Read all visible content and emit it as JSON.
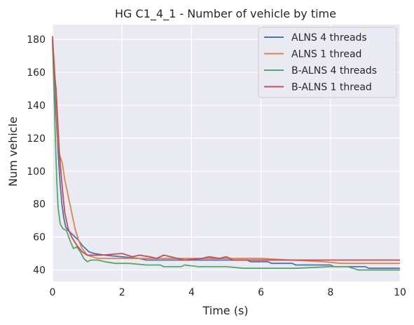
{
  "chart_data": {
    "type": "line",
    "title": "HG C1_4_1 - Number of vehicle by time",
    "xlabel": "Time (s)",
    "ylabel": "Num vehicle",
    "xlim": [
      0,
      10
    ],
    "ylim": [
      33,
      189
    ],
    "x_ticks": [
      0,
      2,
      4,
      6,
      8,
      10
    ],
    "y_ticks": [
      40,
      60,
      80,
      100,
      120,
      140,
      160,
      180
    ],
    "grid": true,
    "legend_position": "top-right",
    "colors": {
      "background": "#eaeaf2",
      "grid": "#ffffff"
    },
    "series": [
      {
        "name": "ALNS 4 threads",
        "color": "#4c72b0",
        "points": [
          [
            0,
            180
          ],
          [
            0.03,
            165
          ],
          [
            0.06,
            150
          ],
          [
            0.1,
            135
          ],
          [
            0.14,
            120
          ],
          [
            0.18,
            105
          ],
          [
            0.22,
            92
          ],
          [
            0.27,
            80
          ],
          [
            0.32,
            72
          ],
          [
            0.38,
            66
          ],
          [
            0.45,
            64
          ],
          [
            0.55,
            62
          ],
          [
            0.65,
            60
          ],
          [
            0.75,
            58
          ],
          [
            0.85,
            55
          ],
          [
            0.95,
            53
          ],
          [
            1.05,
            51
          ],
          [
            1.2,
            50
          ],
          [
            1.5,
            49
          ],
          [
            2.0,
            48
          ],
          [
            2.5,
            47
          ],
          [
            2.7,
            46
          ],
          [
            3.5,
            46
          ],
          [
            4.5,
            46
          ],
          [
            5.6,
            46
          ],
          [
            5.7,
            45
          ],
          [
            6.2,
            45
          ],
          [
            6.3,
            44
          ],
          [
            6.9,
            44
          ],
          [
            7.0,
            43
          ],
          [
            8.0,
            43
          ],
          [
            8.1,
            42
          ],
          [
            9.0,
            42
          ],
          [
            9.1,
            41
          ],
          [
            10,
            41
          ]
        ]
      },
      {
        "name": "ALNS 1 thread",
        "color": "#dd8452",
        "points": [
          [
            0,
            180
          ],
          [
            0.05,
            165
          ],
          [
            0.1,
            145
          ],
          [
            0.15,
            120
          ],
          [
            0.2,
            110
          ],
          [
            0.28,
            105
          ],
          [
            0.35,
            95
          ],
          [
            0.45,
            85
          ],
          [
            0.55,
            75
          ],
          [
            0.65,
            65
          ],
          [
            0.75,
            58
          ],
          [
            0.85,
            53
          ],
          [
            1.0,
            49
          ],
          [
            1.3,
            47
          ],
          [
            2.0,
            47
          ],
          [
            2.5,
            47
          ],
          [
            3.0,
            47
          ],
          [
            4.0,
            47
          ],
          [
            5.0,
            47
          ],
          [
            6.0,
            47
          ],
          [
            6.9,
            46
          ],
          [
            7.8,
            45
          ],
          [
            8.3,
            44
          ],
          [
            10,
            44
          ]
        ]
      },
      {
        "name": "B-ALNS 4 threads",
        "color": "#55a868",
        "points": [
          [
            0,
            178
          ],
          [
            0.04,
            150
          ],
          [
            0.08,
            120
          ],
          [
            0.12,
            95
          ],
          [
            0.16,
            78
          ],
          [
            0.22,
            68
          ],
          [
            0.3,
            65
          ],
          [
            0.4,
            64
          ],
          [
            0.5,
            58
          ],
          [
            0.6,
            53
          ],
          [
            0.7,
            54
          ],
          [
            0.8,
            51
          ],
          [
            0.9,
            47
          ],
          [
            1.0,
            45
          ],
          [
            1.1,
            46
          ],
          [
            1.3,
            46
          ],
          [
            1.5,
            45
          ],
          [
            1.8,
            44
          ],
          [
            2.2,
            44
          ],
          [
            2.7,
            43
          ],
          [
            3.1,
            43
          ],
          [
            3.2,
            42
          ],
          [
            3.7,
            42
          ],
          [
            3.8,
            43
          ],
          [
            4.2,
            42
          ],
          [
            5.0,
            42
          ],
          [
            5.5,
            41
          ],
          [
            7.0,
            41
          ],
          [
            8.0,
            42
          ],
          [
            8.5,
            42
          ],
          [
            8.8,
            40
          ],
          [
            10,
            40
          ]
        ]
      },
      {
        "name": "B-ALNS 1 thread",
        "color": "#c44e52",
        "points": [
          [
            0,
            182
          ],
          [
            0.05,
            160
          ],
          [
            0.1,
            150
          ],
          [
            0.15,
            130
          ],
          [
            0.2,
            110
          ],
          [
            0.28,
            90
          ],
          [
            0.35,
            75
          ],
          [
            0.45,
            65
          ],
          [
            0.55,
            60
          ],
          [
            0.7,
            55
          ],
          [
            0.85,
            51
          ],
          [
            1.0,
            49
          ],
          [
            1.4,
            49
          ],
          [
            2.0,
            50
          ],
          [
            2.3,
            48
          ],
          [
            2.5,
            49
          ],
          [
            2.8,
            48
          ],
          [
            3.0,
            47
          ],
          [
            3.2,
            49
          ],
          [
            3.4,
            48
          ],
          [
            3.6,
            47
          ],
          [
            3.8,
            46
          ],
          [
            4.3,
            47
          ],
          [
            4.5,
            48
          ],
          [
            4.8,
            47
          ],
          [
            5.0,
            48
          ],
          [
            5.2,
            46
          ],
          [
            6.0,
            46
          ],
          [
            7.0,
            46
          ],
          [
            8.0,
            46
          ],
          [
            10,
            46
          ]
        ]
      }
    ]
  }
}
